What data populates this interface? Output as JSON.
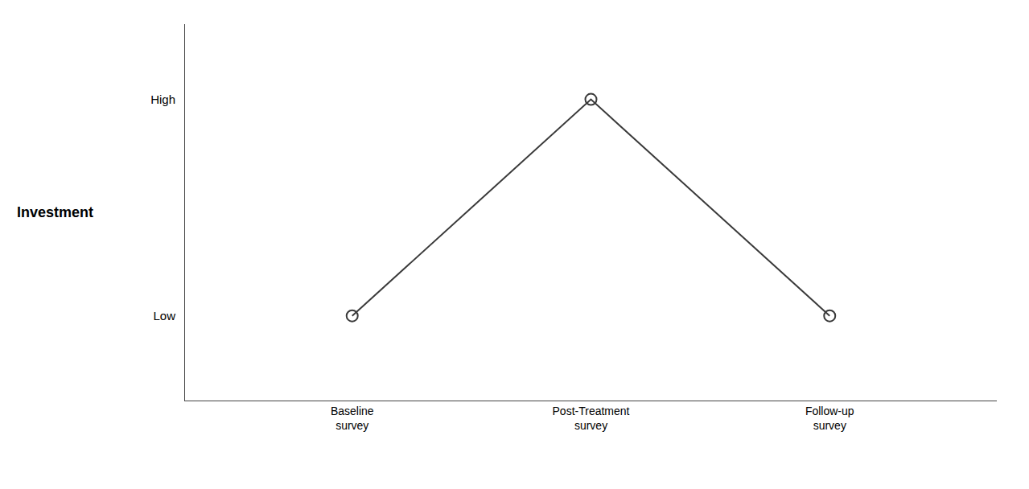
{
  "chart_data": {
    "type": "line",
    "categories": [
      "Baseline\nsurvey",
      "Post-Treatment\nsurvey",
      "Follow-up\nsurvey"
    ],
    "values": [
      1.2,
      3.5,
      1.2
    ],
    "color": "#3a3a3a",
    "marker": "circle",
    "ylabel": "Investment",
    "ylim": [
      0.3,
      4.3
    ],
    "yticks": [
      {
        "value": 1.2,
        "label": "Low"
      },
      {
        "value": 3.5,
        "label": "High"
      }
    ],
    "grid": false
  }
}
